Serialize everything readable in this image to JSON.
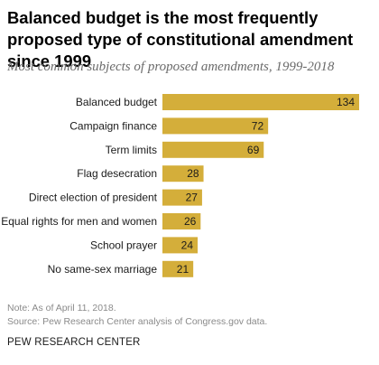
{
  "title": "Balanced budget is the most frequently proposed type of constitutional amendment since 1999",
  "subtitle": "Most common subjects of proposed amendments, 1999-2018",
  "note": "Note: As of April 11, 2018.",
  "source": "Source: Pew Research Center analysis of Congress.gov data.",
  "brand": "PEW RESEARCH CENTER",
  "colors": {
    "bar": "#d4ae3a",
    "text": "#1a1a1a",
    "muted": "#8a8a8a"
  },
  "chart_data": {
    "type": "bar",
    "orientation": "horizontal",
    "categories": [
      "Balanced budget",
      "Campaign finance",
      "Term limits",
      "Flag desecration",
      "Direct election of president",
      "Equal rights for men and women",
      "School prayer",
      "No same-sex marriage"
    ],
    "values": [
      134,
      72,
      69,
      28,
      27,
      26,
      24,
      21
    ],
    "title": "Balanced budget is the most frequently proposed type of constitutional amendment since 1999",
    "subtitle": "Most common subjects of proposed amendments, 1999-2018",
    "xlabel": "",
    "ylabel": "",
    "xlim": [
      0,
      134
    ],
    "grid": false,
    "data_labels": true
  }
}
